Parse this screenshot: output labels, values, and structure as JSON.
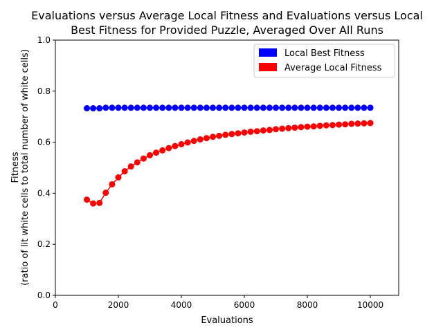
{
  "chart_data": {
    "type": "line",
    "title_lines": [
      "Evaluations versus Average Local Fitness and Evaluations versus Local",
      "Best Fitness for Provided Puzzle, Averaged Over All Runs"
    ],
    "xlabel": "Evaluations",
    "ylabel_lines": [
      "Fitness",
      "(ratio of lit white cells to total number of white cells)"
    ],
    "xlim": [
      0,
      10900
    ],
    "ylim": [
      0,
      1.0
    ],
    "xticks": [
      0,
      2000,
      4000,
      6000,
      8000,
      10000
    ],
    "xtick_labels": [
      "0",
      "2000",
      "4000",
      "6000",
      "8000",
      "10000"
    ],
    "yticks": [
      0.0,
      0.2,
      0.4,
      0.6,
      0.8,
      1.0
    ],
    "ytick_labels": [
      "0.0",
      "0.2",
      "0.4",
      "0.6",
      "0.8",
      "1.0"
    ],
    "grid": false,
    "legend_position": "top-right",
    "x": [
      1000,
      1200,
      1400,
      1600,
      1800,
      2000,
      2200,
      2400,
      2600,
      2800,
      3000,
      3200,
      3400,
      3600,
      3800,
      4000,
      4200,
      4400,
      4600,
      4800,
      5000,
      5200,
      5400,
      5600,
      5800,
      6000,
      6200,
      6400,
      6600,
      6800,
      7000,
      7200,
      7400,
      7600,
      7800,
      8000,
      8200,
      8400,
      8600,
      8800,
      9000,
      9200,
      9400,
      9600,
      9800,
      10000
    ],
    "series": [
      {
        "name": "Local Best Fitness",
        "color": "#0000ff",
        "values": [
          0.733,
          0.733,
          0.733,
          0.735,
          0.735,
          0.735,
          0.735,
          0.735,
          0.735,
          0.735,
          0.735,
          0.735,
          0.735,
          0.735,
          0.735,
          0.735,
          0.735,
          0.735,
          0.735,
          0.735,
          0.735,
          0.735,
          0.735,
          0.735,
          0.735,
          0.735,
          0.735,
          0.735,
          0.735,
          0.735,
          0.735,
          0.735,
          0.735,
          0.735,
          0.735,
          0.735,
          0.735,
          0.735,
          0.735,
          0.735,
          0.735,
          0.735,
          0.735,
          0.735,
          0.735,
          0.735
        ]
      },
      {
        "name": "Average Local Fitness",
        "color": "#ff0000",
        "values": [
          0.375,
          0.36,
          0.362,
          0.402,
          0.435,
          0.462,
          0.486,
          0.505,
          0.521,
          0.536,
          0.549,
          0.559,
          0.568,
          0.577,
          0.585,
          0.592,
          0.599,
          0.605,
          0.611,
          0.616,
          0.621,
          0.625,
          0.629,
          0.632,
          0.635,
          0.638,
          0.641,
          0.643,
          0.646,
          0.648,
          0.651,
          0.653,
          0.655,
          0.657,
          0.659,
          0.661,
          0.662,
          0.664,
          0.666,
          0.667,
          0.669,
          0.67,
          0.672,
          0.673,
          0.674,
          0.675
        ]
      }
    ]
  }
}
